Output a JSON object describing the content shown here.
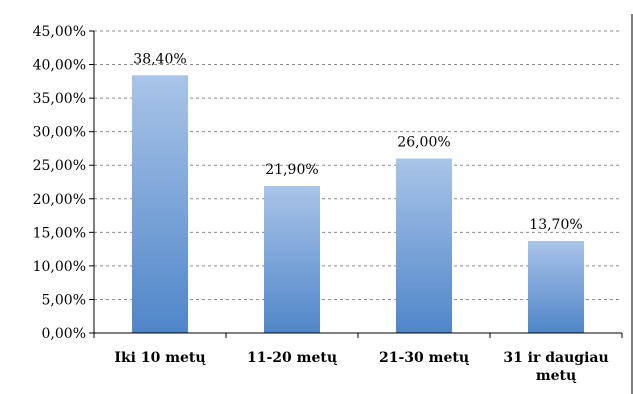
{
  "chart_data": {
    "type": "bar",
    "categories": [
      "Iki 10 metų",
      "11-20 metų",
      "21-30 metų",
      "31 ir daugiau metų"
    ],
    "category_lines": [
      [
        "Iki 10 metų"
      ],
      [
        "11-20 metų"
      ],
      [
        "21-30 metų"
      ],
      [
        "31 ir daugiau",
        "metų"
      ]
    ],
    "values": [
      38.4,
      21.9,
      26.0,
      13.7
    ],
    "data_labels": [
      "38,40%",
      "21,90%",
      "26,00%",
      "13,70%"
    ],
    "ylim": [
      0,
      45
    ],
    "yticks": [
      0,
      5,
      10,
      15,
      20,
      25,
      30,
      35,
      40,
      45
    ],
    "ytick_labels": [
      "0,00%",
      "5,00%",
      "10,00%",
      "15,00%",
      "20,00%",
      "25,00%",
      "30,00%",
      "35,00%",
      "40,00%",
      "45,00%"
    ],
    "grid": true,
    "legend": "none",
    "bar_color_top": "#a9c4e8",
    "bar_color_bottom": "#4f86c9"
  }
}
